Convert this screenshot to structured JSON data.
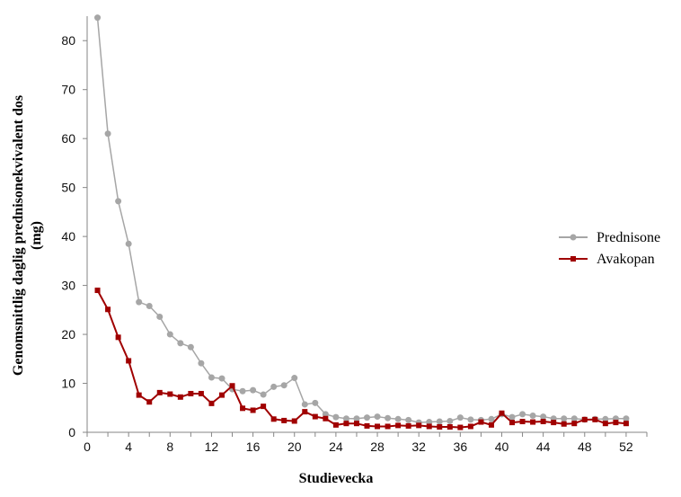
{
  "chart_data": {
    "type": "line",
    "title": "",
    "xlabel": "Studievecka",
    "ylabel": "Genomsnittlig daglig prednisonekvivalent dos (mg)",
    "ylabel_lines": [
      "Genomsnittlig daglig prednisonekvivalent dos",
      "(mg)"
    ],
    "xlim": [
      0,
      54
    ],
    "ylim": [
      0,
      85
    ],
    "xticks": [
      0,
      4,
      8,
      12,
      16,
      20,
      24,
      28,
      32,
      36,
      40,
      44,
      48,
      52
    ],
    "yticks": [
      0,
      10,
      20,
      30,
      40,
      50,
      60,
      70,
      80
    ],
    "grid": false,
    "legend_position": "right",
    "x": [
      1,
      2,
      3,
      4,
      5,
      6,
      7,
      8,
      9,
      10,
      11,
      12,
      13,
      14,
      15,
      16,
      17,
      18,
      19,
      20,
      21,
      22,
      23,
      24,
      25,
      26,
      27,
      28,
      29,
      30,
      31,
      32,
      33,
      34,
      35,
      36,
      37,
      38,
      39,
      40,
      41,
      42,
      43,
      44,
      45,
      46,
      47,
      48,
      49,
      50,
      51,
      52
    ],
    "series": [
      {
        "name": "Prednisone",
        "color": "#a6a6a6",
        "marker": "circle",
        "values": [
          84.7,
          61.0,
          47.2,
          38.5,
          26.6,
          25.8,
          23.6,
          20.0,
          18.2,
          17.4,
          14.1,
          11.2,
          11.0,
          8.8,
          8.4,
          8.6,
          7.7,
          9.3,
          9.6,
          11.1,
          5.7,
          6.0,
          3.7,
          3.1,
          2.8,
          2.8,
          3.0,
          3.2,
          2.9,
          2.7,
          2.5,
          2.0,
          2.1,
          2.2,
          2.3,
          3.0,
          2.6,
          2.5,
          2.7,
          3.7,
          3.1,
          3.7,
          3.4,
          3.2,
          2.8,
          2.8,
          2.8,
          2.6,
          2.7,
          2.7,
          2.8,
          2.8
        ]
      },
      {
        "name": "Avakopan",
        "color": "#a00000",
        "marker": "square",
        "values": [
          29.0,
          25.1,
          19.4,
          14.6,
          7.6,
          6.2,
          8.1,
          7.8,
          7.2,
          7.9,
          7.9,
          5.9,
          7.6,
          9.5,
          4.9,
          4.5,
          5.3,
          2.7,
          2.4,
          2.3,
          4.2,
          3.2,
          2.8,
          1.5,
          1.8,
          1.8,
          1.3,
          1.2,
          1.2,
          1.4,
          1.3,
          1.4,
          1.2,
          1.1,
          1.1,
          1.0,
          1.2,
          2.1,
          1.5,
          3.9,
          2.0,
          2.2,
          2.1,
          2.2,
          2.0,
          1.7,
          1.8,
          2.6,
          2.6,
          1.8,
          2.0,
          1.8
        ]
      }
    ]
  }
}
